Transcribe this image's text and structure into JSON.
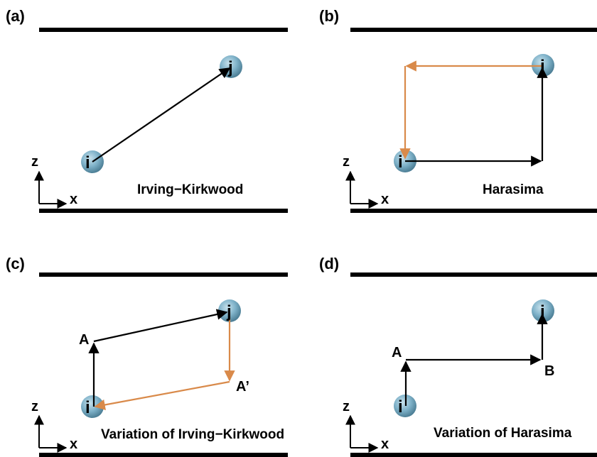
{
  "colors": {
    "black_path": "#000000",
    "orange_path": "#d98a4a",
    "atom_fill": "#7fb2c9",
    "atom_edge": "#4d7f96",
    "wall": "#000000"
  },
  "axes": {
    "z": "z",
    "x": "x"
  },
  "panels": {
    "a": {
      "label": "(a)",
      "caption": "Irving−Kirkwood",
      "atom_i": "i",
      "atom_j": "j"
    },
    "b": {
      "label": "(b)",
      "caption": "Harasima",
      "atom_i": "i",
      "atom_j": "j"
    },
    "c": {
      "label": "(c)",
      "caption": "Variation of Irving−Kirkwood",
      "atom_i": "i",
      "atom_j": "j",
      "point_a": "A",
      "point_a_prime": "A’"
    },
    "d": {
      "label": "(d)",
      "caption": "Variation of Harasima",
      "atom_i": "i",
      "atom_j": "j",
      "point_a": "A",
      "point_b": "B"
    }
  }
}
